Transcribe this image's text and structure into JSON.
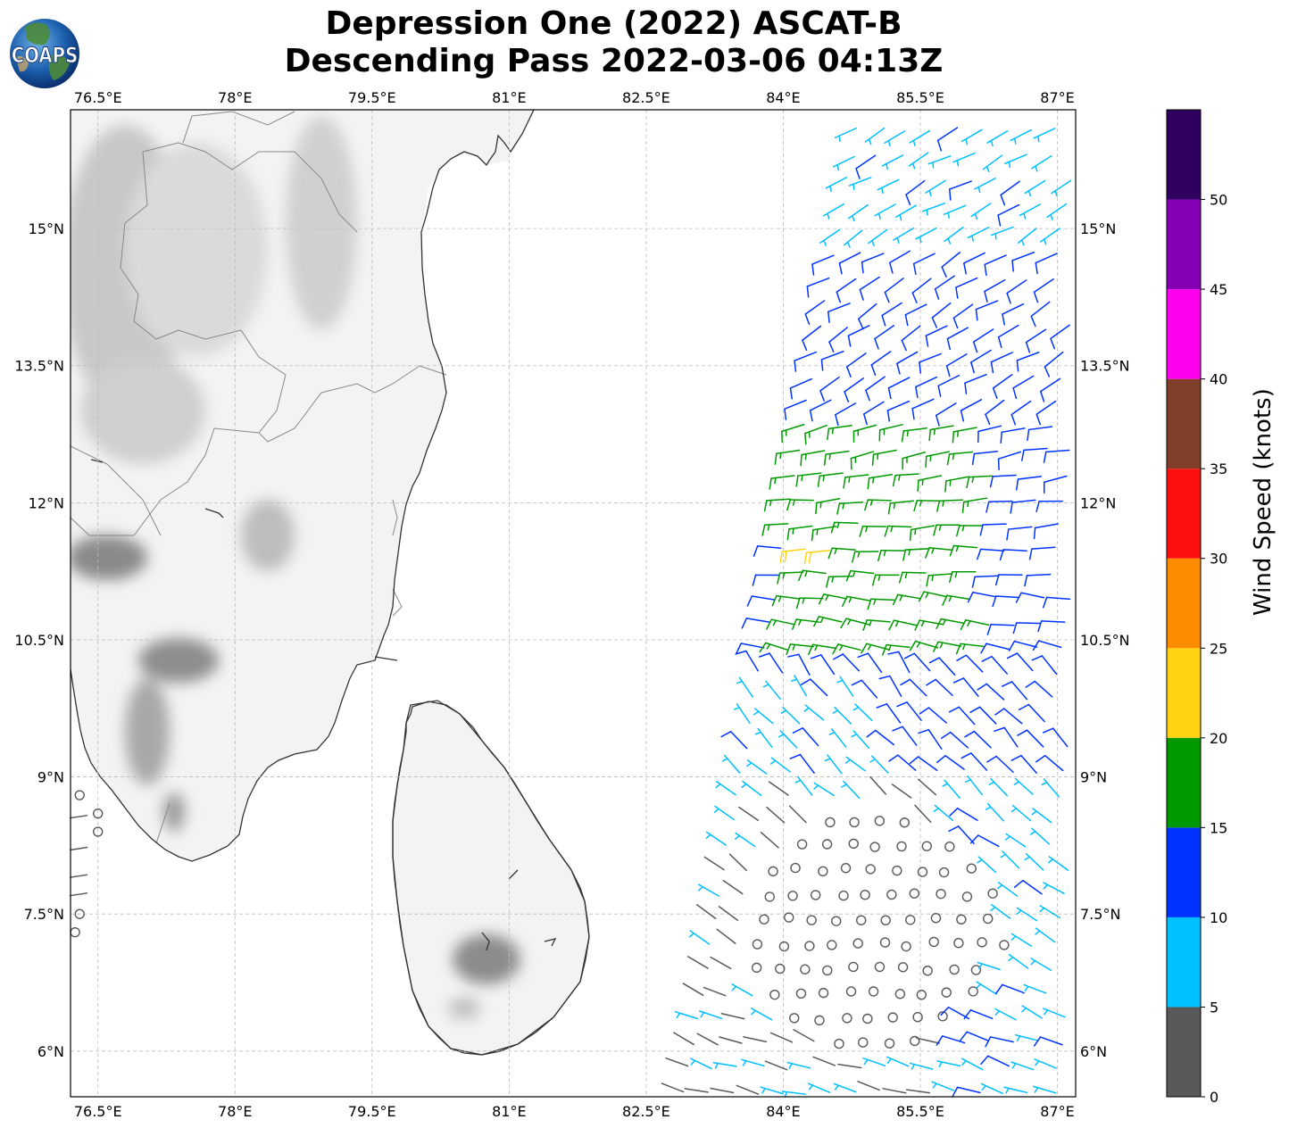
{
  "title_line1": "Depression One (2022) ASCAT-B",
  "title_line2": "Descending Pass 2022-03-06 04:13Z",
  "logo_text": "COAPS",
  "lon_ticks": [
    {
      "value": 76.5,
      "label": "76.5°E"
    },
    {
      "value": 78.0,
      "label": "78°E"
    },
    {
      "value": 79.5,
      "label": "79.5°E"
    },
    {
      "value": 81.0,
      "label": "81°E"
    },
    {
      "value": 82.5,
      "label": "82.5°E"
    },
    {
      "value": 84.0,
      "label": "84°E"
    },
    {
      "value": 85.5,
      "label": "85.5°E"
    },
    {
      "value": 87.0,
      "label": "87°E"
    }
  ],
  "lat_ticks": [
    {
      "value": 15.0,
      "label": "15°N"
    },
    {
      "value": 13.5,
      "label": "13.5°N"
    },
    {
      "value": 12.0,
      "label": "12°N"
    },
    {
      "value": 10.5,
      "label": "10.5°N"
    },
    {
      "value": 9.0,
      "label": "9°N"
    },
    {
      "value": 7.5,
      "label": "7.5°N"
    },
    {
      "value": 6.0,
      "label": "6°N"
    }
  ],
  "extent": {
    "lon_min": 76.2,
    "lon_max": 87.2,
    "lat_min": 5.5,
    "lat_max": 16.3
  },
  "colorbar": {
    "label": "Wind Speed (knots)",
    "bins": [
      {
        "min": 0,
        "max": 5,
        "color": "#595959"
      },
      {
        "min": 5,
        "max": 10,
        "color": "#00bfff"
      },
      {
        "min": 10,
        "max": 15,
        "color": "#0033ff"
      },
      {
        "min": 15,
        "max": 20,
        "color": "#009900"
      },
      {
        "min": 20,
        "max": 25,
        "color": "#ffd311"
      },
      {
        "min": 25,
        "max": 30,
        "color": "#ff8c00"
      },
      {
        "min": 30,
        "max": 35,
        "color": "#ff1010"
      },
      {
        "min": 35,
        "max": 40,
        "color": "#7f3f2a"
      },
      {
        "min": 40,
        "max": 45,
        "color": "#ff00ee"
      },
      {
        "min": 45,
        "max": 50,
        "color": "#8300b5"
      },
      {
        "min": 50,
        "max": 55,
        "color": "#300060"
      }
    ],
    "tick_labels": [
      "0",
      "5",
      "10",
      "15",
      "20",
      "25",
      "30",
      "35",
      "40",
      "45",
      "50"
    ]
  },
  "colors": {
    "coastline": "#333333",
    "border": "#888888",
    "grid": "#bbbbbb",
    "land": "#f2f2f2",
    "terrain": "#9e9e9e"
  }
}
